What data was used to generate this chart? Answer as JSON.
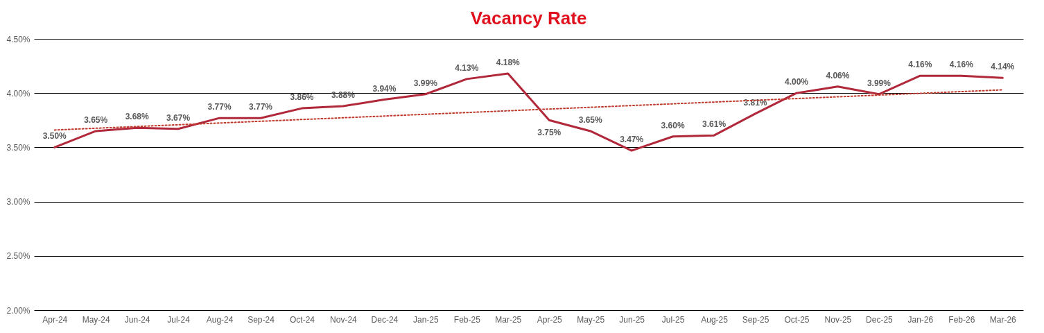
{
  "chart_data": {
    "type": "line",
    "title": "Vacancy Rate",
    "categories": [
      "Apr-24",
      "May-24",
      "Jun-24",
      "Jul-24",
      "Aug-24",
      "Sep-24",
      "Oct-24",
      "Nov-24",
      "Dec-24",
      "Jan-25",
      "Feb-25",
      "Mar-25",
      "Apr-25",
      "May-25",
      "Jun-25",
      "Jul-25",
      "Aug-25",
      "Sep-25",
      "Oct-25",
      "Nov-25",
      "Dec-25",
      "Jan-26",
      "Feb-26",
      "Mar-26"
    ],
    "series": [
      {
        "color": "#b0283a",
        "line_style": "solid",
        "values": [
          3.5,
          3.65,
          3.68,
          3.67,
          3.77,
          3.77,
          3.86,
          3.88,
          3.94,
          3.99,
          4.13,
          4.18,
          3.75,
          3.65,
          3.47,
          3.6,
          3.61,
          3.81,
          4.0,
          4.06,
          3.99,
          4.16,
          4.16,
          4.14
        ],
        "value_labels": [
          "3.50%",
          "3.65%",
          "3.68%",
          "3.67%",
          "3.77%",
          "3.77%",
          "3.86%",
          "3.88%",
          "3.94%",
          "3.99%",
          "4.13%",
          "4.18%",
          "3.75%",
          "3.65%",
          "3.47%",
          "3.60%",
          "3.61%",
          "3.81%",
          "4.00%",
          "4.06%",
          "3.99%",
          "4.16%",
          "4.16%",
          "4.14%"
        ]
      },
      {
        "color": "#c0392b",
        "line_style": "dotted",
        "x": [
          "Apr-24",
          "Mar-26"
        ],
        "values": [
          3.66,
          4.03
        ]
      }
    ],
    "ylim": [
      2.0,
      4.5
    ],
    "yticks": [
      {
        "value": 2.0,
        "label": "2.00%"
      },
      {
        "value": 2.5,
        "label": "2.50%"
      },
      {
        "value": 3.0,
        "label": "3.00%"
      },
      {
        "value": 3.5,
        "label": "3.50%"
      },
      {
        "value": 4.0,
        "label": "4.00%"
      },
      {
        "value": 4.5,
        "label": "4.50%"
      }
    ],
    "grid": "y"
  }
}
